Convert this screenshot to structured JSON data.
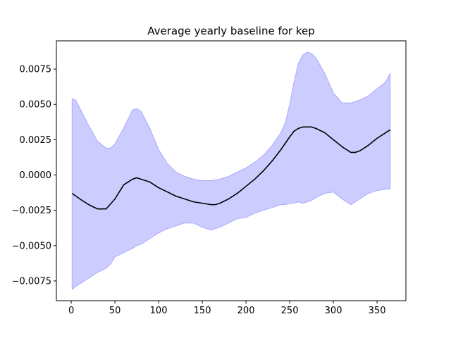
{
  "chart_data": {
    "type": "area",
    "title": "Average yearly baseline for kep",
    "xlabel": "",
    "ylabel": "",
    "xlim": [
      -17,
      383
    ],
    "ylim": [
      -0.0089,
      0.0095
    ],
    "xticks": [
      0,
      50,
      100,
      150,
      200,
      250,
      300,
      350
    ],
    "yticks": [
      -0.0075,
      -0.005,
      -0.0025,
      0.0,
      0.0025,
      0.005,
      0.0075
    ],
    "ytick_labels": [
      "−0.0075",
      "−0.0050",
      "−0.0025",
      "0.0000",
      "0.0025",
      "0.0050",
      "0.0075"
    ],
    "grid": false,
    "legend": "none",
    "colors": {
      "band_fill": "#ccccff",
      "band_edge": "#a9a9ff",
      "mean_line": "#000000"
    },
    "mean": {
      "x": [
        1,
        10,
        20,
        30,
        40,
        50,
        60,
        70,
        75,
        80,
        90,
        100,
        110,
        120,
        130,
        140,
        150,
        160,
        165,
        170,
        180,
        190,
        200,
        210,
        220,
        230,
        240,
        250,
        255,
        260,
        265,
        270,
        275,
        280,
        290,
        300,
        310,
        320,
        325,
        330,
        340,
        350,
        360,
        365
      ],
      "y": [
        -0.0013,
        -0.0017,
        -0.0021,
        -0.0024,
        -0.0024,
        -0.0017,
        -0.0007,
        -0.0003,
        -0.0002,
        -0.0003,
        -0.0005,
        -0.0009,
        -0.0012,
        -0.0015,
        -0.0017,
        -0.0019,
        -0.002,
        -0.0021,
        -0.0021,
        -0.002,
        -0.0017,
        -0.0013,
        -0.0008,
        -0.0003,
        0.0003,
        0.001,
        0.0018,
        0.0027,
        0.0031,
        0.0033,
        0.0034,
        0.0034,
        0.0034,
        0.0033,
        0.003,
        0.0025,
        0.002,
        0.0016,
        0.0016,
        0.0017,
        0.0021,
        0.0026,
        0.003,
        0.0032
      ]
    },
    "band": {
      "x": [
        1,
        5,
        10,
        20,
        30,
        40,
        45,
        50,
        60,
        70,
        75,
        80,
        90,
        100,
        110,
        120,
        130,
        140,
        150,
        160,
        170,
        180,
        190,
        200,
        210,
        220,
        230,
        240,
        245,
        250,
        255,
        260,
        265,
        270,
        275,
        280,
        290,
        300,
        310,
        320,
        330,
        340,
        350,
        360,
        365
      ],
      "upper": [
        0.0054,
        0.0053,
        0.0047,
        0.0035,
        0.0024,
        0.0019,
        0.0019,
        0.0022,
        0.0033,
        0.0046,
        0.0047,
        0.0045,
        0.0033,
        0.0018,
        0.0008,
        0.0002,
        -0.0001,
        -0.0003,
        -0.0004,
        -0.0004,
        -0.0003,
        -0.0001,
        0.0002,
        0.0005,
        0.0009,
        0.0014,
        0.0021,
        0.003,
        0.0037,
        0.005,
        0.0066,
        0.0079,
        0.0085,
        0.0087,
        0.0086,
        0.0083,
        0.0072,
        0.0058,
        0.0051,
        0.0051,
        0.0053,
        0.0056,
        0.0061,
        0.0066,
        0.0072
      ],
      "lower": [
        -0.0081,
        -0.0079,
        -0.0077,
        -0.0073,
        -0.0069,
        -0.0066,
        -0.0063,
        -0.0058,
        -0.0055,
        -0.0052,
        -0.005,
        -0.0049,
        -0.0045,
        -0.0041,
        -0.0038,
        -0.0036,
        -0.0034,
        -0.0034,
        -0.0037,
        -0.0039,
        -0.0037,
        -0.0034,
        -0.0031,
        -0.003,
        -0.0027,
        -0.0025,
        -0.0023,
        -0.0021,
        -0.0021,
        -0.002,
        -0.002,
        -0.0019,
        -0.002,
        -0.0019,
        -0.0018,
        -0.0016,
        -0.0013,
        -0.0012,
        -0.0017,
        -0.0021,
        -0.0017,
        -0.0013,
        -0.0011,
        -0.001,
        -0.001
      ]
    }
  }
}
